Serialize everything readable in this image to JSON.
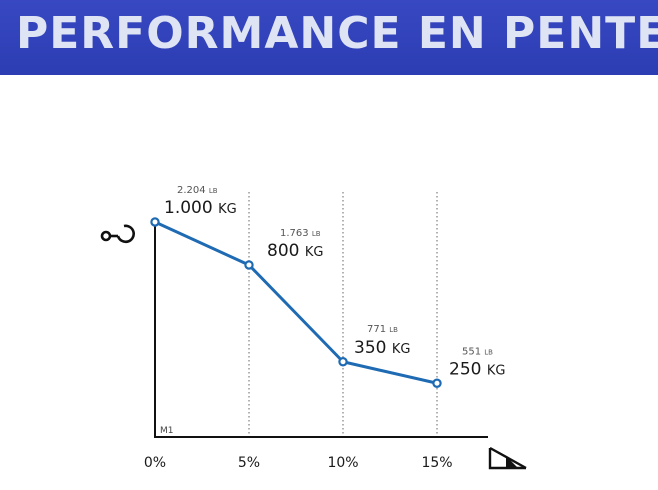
{
  "header": {
    "title": "PERFORMANCE EN PENTE"
  },
  "chart_data": {
    "type": "line",
    "title": "PERFORMANCE EN PENTE",
    "xlabel": "",
    "ylabel": "",
    "x": [
      "0%",
      "5%",
      "10%",
      "15%"
    ],
    "xlim": [
      0,
      15
    ],
    "ylim": [
      0,
      1000
    ],
    "grid": "vertical-dotted",
    "series": [
      {
        "values": [
          1000,
          800,
          350,
          250
        ],
        "color": "#1f6bb3"
      }
    ],
    "data_labels": [
      {
        "lb_value": "2.204",
        "lb_unit": "LB",
        "kg_value": "1.000",
        "kg_unit": "KG"
      },
      {
        "lb_value": "1.763",
        "lb_unit": "LB",
        "kg_value": "800",
        "kg_unit": "KG"
      },
      {
        "lb_value": "771",
        "lb_unit": "LB",
        "kg_value": "350",
        "kg_unit": "KG"
      },
      {
        "lb_value": "551",
        "lb_unit": "LB",
        "kg_value": "250",
        "kg_unit": "KG"
      }
    ],
    "model_label": "M1",
    "y_axis_icon": "hook-icon",
    "x_axis_icon": "slope-icon"
  }
}
